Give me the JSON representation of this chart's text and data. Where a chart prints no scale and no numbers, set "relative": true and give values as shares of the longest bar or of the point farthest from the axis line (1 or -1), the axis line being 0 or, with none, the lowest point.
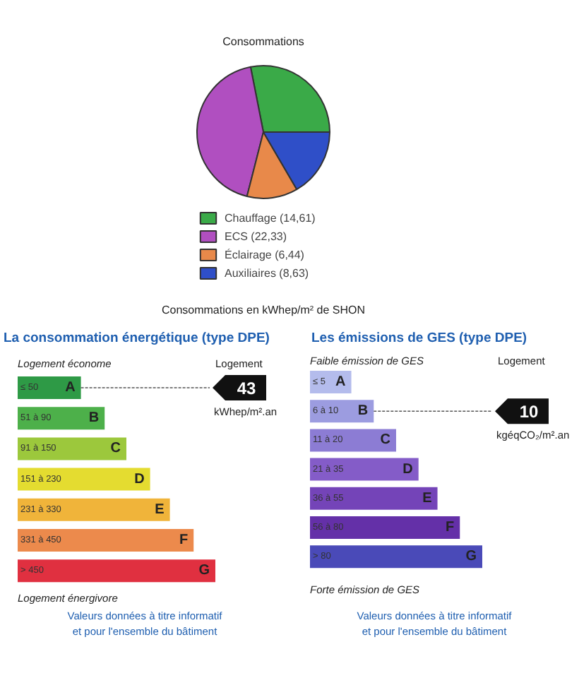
{
  "chart_data": [
    {
      "type": "pie",
      "title": "Consommations",
      "categories": [
        "Chauffage (14,61)",
        "ECS (22,33)",
        "Éclairage (6,44)",
        "Auxiliaires (8,63)"
      ],
      "values": [
        14.61,
        22.33,
        6.44,
        8.63
      ],
      "colors": [
        "#3aaa48",
        "#b04fc0",
        "#e8894a",
        "#2f4fc8"
      ],
      "legend": "bottom",
      "annotations": [
        "Consommations en kWhep/m² de SHON"
      ]
    },
    {
      "type": "bar",
      "orientation": "horizontal",
      "relative": true,
      "title": "La consommation énergétique (type DPE)",
      "categories": [
        "≤ 50",
        "51 à 90",
        "91 à 150",
        "151 à 230",
        "231 à 330",
        "331 à 450",
        "> 450"
      ],
      "values": [
        0.32,
        0.44,
        0.55,
        0.67,
        0.77,
        0.89,
        1
      ],
      "colors": [
        "#2e9a46",
        "#4db04a",
        "#9cc83c",
        "#e4dc30",
        "#f0b43a",
        "#ec8a4c",
        "#e03040"
      ],
      "annotations": [
        "Logement économe",
        "Logement énergivore",
        "Logement",
        "43",
        "kWhep/m².an",
        "Valeurs données à titre informatif\net pour l'ensemble du bâtiment",
        "A",
        "B",
        "C",
        "D",
        "E",
        "F",
        "G"
      ]
    },
    {
      "type": "bar",
      "orientation": "horizontal",
      "relative": true,
      "title": "Les émissions de GES (type DPE)",
      "categories": [
        "≤ 5",
        "6 à 10",
        "11 à 20",
        "21 à 35",
        "36 à 55",
        "56 à 80",
        "> 80"
      ],
      "values": [
        0.24,
        0.37,
        0.5,
        0.63,
        0.74,
        0.87,
        1
      ],
      "colors": [
        "#b4bcec",
        "#9c9ce0",
        "#8c7cd4",
        "#845cc8",
        "#7444b8",
        "#6430a8",
        "#4a4ab8"
      ],
      "annotations": [
        "Faible émission de GES",
        "Forte émission de GES",
        "Logement",
        "10",
        "kgéqCO₂/m².an",
        "Valeurs données à titre informatif\net pour l'ensemble du bâtiment",
        "A",
        "B",
        "C",
        "D",
        "E",
        "F",
        "G"
      ]
    }
  ]
}
